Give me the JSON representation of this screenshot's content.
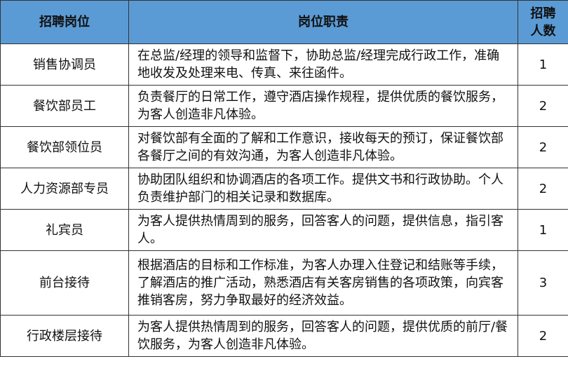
{
  "table": {
    "header": [
      "招聘岗位",
      "岗位职责",
      "招聘人数"
    ],
    "rows": [
      [
        "销售协调员",
        "在总监/经理的领导和监督下，协助总监/经理完成行政工作，准确地收发及处理来电、传真、来往函件。",
        1
      ],
      [
        "餐饮部员工",
        "负责餐厅的日常工作，遵守酒店操作规程，提供优质的餐饮服务，为客人创造非凡体验。",
        2
      ],
      [
        "餐饮部领位员",
        "对餐饮部有全面的了解和工作意识，接收每天的预订，保证餐饮部各餐厅之间的有效沟通，为客人创造非凡体验。",
        2
      ],
      [
        "人力资源部专员",
        "协助团队组织和协调酒店的各项工作。提供文书和行政协助。个人负责维护部门的相关记录和数据库。",
        2
      ],
      [
        "礼宾员",
        "为客人提供热情周到的服务，回答客人的问题，提供信息，指引客人。",
        1
      ],
      [
        "前台接待",
        "根据酒店的目标和工作标准，为客人办理入住登记和结账等手续，了解酒店的推广活动，熟悉酒店有关客房销售的各项政策，向宾客推销客房，努力争取最好的经济效益。",
        3
      ],
      [
        "行政楼层接待",
        "为客人提供热情周到的服务，回答客人的问题，提供优质的前厅/餐饮服务，为客人创造非凡体验。",
        2
      ]
    ]
  }
}
